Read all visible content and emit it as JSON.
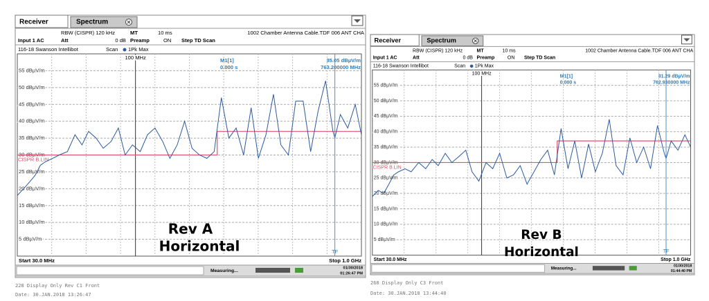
{
  "panels": [
    {
      "tabs": [
        "Receiver",
        "Spectrum"
      ],
      "rbw": "RBW (CISPR) 120 kHz",
      "mt": "MT",
      "mt_value": "10 ms",
      "file": "1002 Chamber Antenna Cable.TDF 006 ANT CHA",
      "input": "Input 1 AC",
      "att": "Att",
      "att_value": "0 dB",
      "preamp": "Preamp",
      "preamp_value": "ON",
      "step": "Step TD Scan",
      "title": "116-18 Swanson Intellibot",
      "scan": "Scan",
      "detector": "1Pk Max",
      "marker": {
        "name": "M1[1]",
        "level": "35.05 dBµV/m",
        "time": "0.000 s",
        "freq": "763.200000 MHz"
      },
      "ylim": [
        0,
        60
      ],
      "yticks": [
        {
          "value": 55,
          "label": "55 dBµV/m"
        },
        {
          "value": 50,
          "label": "50 dBµV/m"
        },
        {
          "value": 45,
          "label": "45 dBµV/m"
        },
        {
          "value": 40,
          "label": "40 dBµV/m"
        },
        {
          "value": 35,
          "label": "35 dBµV/m"
        },
        {
          "value": 30,
          "label": "30 dBµV/m"
        },
        {
          "value": 25,
          "label": "25 dBµV/m"
        },
        {
          "value": 20,
          "label": "20 dBµV/m"
        },
        {
          "value": 15,
          "label": "15 dBµV/m"
        },
        {
          "value": 10,
          "label": "10 dBµV/m"
        },
        {
          "value": 5,
          "label": "5 dBµV/m"
        }
      ],
      "xlim": [
        {
          "value": 30,
          "label": "Start 30.0 MHz"
        },
        {
          "value": 1000,
          "label": "Stop 1.0 GHz"
        }
      ],
      "marker_line": {
        "value": 100,
        "label": "100 MHz"
      },
      "limit": {
        "label": "CISPR B.LIN",
        "x": [
          30,
          230,
          230,
          1000
        ],
        "values": [
          30,
          30,
          37,
          37
        ]
      },
      "trace": {
        "x": [
          30,
          32,
          34,
          36,
          38,
          40,
          43,
          46,
          50,
          54,
          58,
          62,
          67,
          72,
          78,
          84,
          90,
          97,
          105,
          113,
          122,
          132,
          142,
          153,
          165,
          178,
          192,
          207,
          223,
          240,
          259,
          279,
          301,
          325,
          350,
          378,
          408,
          440,
          475,
          512,
          552,
          596,
          643,
          694,
          748,
          763,
          807,
          870,
          939,
          1000
        ],
        "values": [
          18,
          20,
          22,
          24,
          27,
          28,
          29,
          30,
          31,
          36,
          33,
          37,
          35,
          32,
          34,
          38,
          30,
          33,
          31,
          36,
          38,
          34,
          29,
          33,
          40,
          32,
          30,
          29,
          31,
          47,
          35,
          38,
          30,
          44,
          29,
          36,
          48,
          33,
          30,
          46,
          46,
          31,
          43,
          52,
          37,
          35.05,
          42,
          38,
          45,
          36
        ]
      },
      "tf": "TF",
      "status": {
        "measuring": "Measuring...",
        "date": "01/30/2018",
        "time": "01:26:47 PM"
      },
      "overlay": [
        "Rev A",
        "Horizontal"
      ],
      "footer": [
        "228 Display Only Rev C1 Front",
        "Date: 30.JAN.2018  13:26:47"
      ]
    },
    {
      "tabs": [
        "Receiver",
        "Spectrum"
      ],
      "rbw": "RBW (CISPR) 120 kHz",
      "mt": "MT",
      "mt_value": "10 ms",
      "file": "1002 Chamber Antenna Cable.TDF 006 ANT CHA",
      "input": "Input 1 AC",
      "att": "Att",
      "att_value": "0 dB",
      "preamp": "Preamp",
      "preamp_value": "ON",
      "step": "Step TD Scan",
      "title": "116-18 Swanson Intellibot",
      "scan": "Scan",
      "detector": "1Pk Max",
      "marker": {
        "name": "M1[1]",
        "level": "31.29 dBµV/m",
        "time": "0.000 s",
        "freq": "762.930000 MHz"
      },
      "ylim": [
        0,
        60
      ],
      "yticks": [
        {
          "value": 55,
          "label": "55 dBµV/m"
        },
        {
          "value": 50,
          "label": "50 dBµV/m"
        },
        {
          "value": 45,
          "label": "45 dBµV/m"
        },
        {
          "value": 40,
          "label": "40 dBµV/m"
        },
        {
          "value": 35,
          "label": "35 dBµV/m"
        },
        {
          "value": 30,
          "label": "30 dBµV/m"
        },
        {
          "value": 25,
          "label": "25 dBµV/m"
        },
        {
          "value": 20,
          "label": "20 dBµV/m"
        },
        {
          "value": 15,
          "label": "15 dBµV/m"
        },
        {
          "value": 10,
          "label": "10 dBµV/m"
        },
        {
          "value": 5,
          "label": "5 dBµV/m"
        }
      ],
      "xlim": [
        {
          "value": 30,
          "label": "Start 30.0 MHz"
        },
        {
          "value": 1000,
          "label": "Stop 1.0 GHz"
        }
      ],
      "marker_line": {
        "value": 100,
        "label": "100 MHz"
      },
      "limit": {
        "label": "CISPR B.LIN",
        "x": [
          30,
          230,
          230,
          1000
        ],
        "values": [
          30,
          30,
          37,
          37
        ]
      },
      "trace": {
        "x": [
          30,
          32,
          34,
          36,
          38,
          40,
          43,
          46,
          50,
          54,
          58,
          62,
          67,
          72,
          78,
          84,
          90,
          97,
          105,
          113,
          122,
          132,
          142,
          153,
          165,
          178,
          192,
          207,
          223,
          240,
          259,
          279,
          301,
          325,
          350,
          378,
          408,
          440,
          475,
          512,
          552,
          596,
          643,
          694,
          748,
          763,
          807,
          870,
          939,
          1000
        ],
        "values": [
          19,
          21,
          20,
          23,
          26,
          27,
          28,
          27,
          30,
          28,
          31,
          29,
          33,
          30,
          32,
          34,
          27,
          24,
          30,
          28,
          33,
          25,
          26,
          29,
          23,
          27,
          31,
          34,
          26,
          41,
          28,
          37,
          25,
          36,
          27,
          33,
          44,
          29,
          26,
          38,
          30,
          35,
          28,
          42,
          33,
          31.29,
          37,
          34,
          39,
          35
        ]
      },
      "tf": "TF",
      "status": {
        "measuring": "Measuring...",
        "date": "01/30/2018",
        "time": "01:44:40 PM"
      },
      "overlay": [
        "Rev B",
        "Horizontal"
      ],
      "footer": [
        "268 Display Only C3 Front",
        "Date: 30.JAN.2018  13:44:40"
      ]
    }
  ]
}
